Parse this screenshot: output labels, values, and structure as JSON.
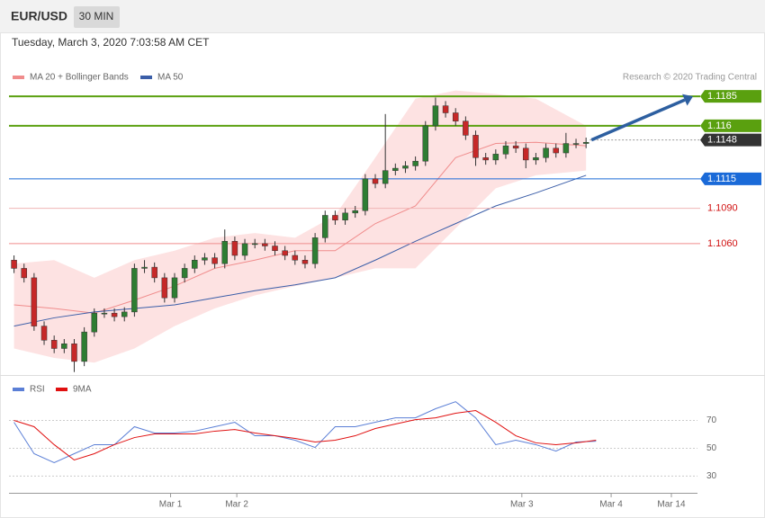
{
  "chart_data": [
    {
      "type": "candlestick",
      "title": "EUR/USD",
      "timeframe": "30 MIN",
      "subtitle": "Tuesday, March 3, 2020 7:03:58 AM CET",
      "credit": "Research © 2020 Trading Central",
      "up_color": "#2e7d32",
      "down_color": "#c62828",
      "xlim": [
        -0.5,
        69
      ],
      "ylim": [
        1.095,
        1.1221
      ],
      "open": [
        1.1046,
        1.1039,
        1.1031,
        1.099,
        1.0978,
        1.0971,
        1.0975,
        1.096,
        1.0985,
        1.1001,
        1.1001,
        1.0998,
        1.1002,
        1.1039,
        1.104,
        1.1031,
        1.1014,
        1.1031,
        1.1039,
        1.1046,
        1.1048,
        1.1043,
        1.1062,
        1.105,
        1.106,
        1.106,
        1.1058,
        1.1054,
        1.105,
        1.1046,
        1.1043,
        1.1065,
        1.1084,
        1.108,
        1.1086,
        1.1088,
        1.1115,
        1.1111,
        1.1122,
        1.1124,
        1.1126,
        1.113,
        1.116,
        1.1177,
        1.1171,
        1.1164,
        1.1152,
        1.1133,
        1.1131,
        1.1136,
        1.1143,
        1.1141,
        1.1131,
        1.1133,
        1.1141,
        1.1137,
        1.1145,
        1.1145
      ],
      "high": [
        1.105,
        1.1043,
        1.1035,
        1.0994,
        1.0982,
        1.0979,
        1.0979,
        1.0989,
        1.1005,
        1.1005,
        1.1005,
        1.1006,
        1.1043,
        1.1046,
        1.1044,
        1.1035,
        1.1035,
        1.1043,
        1.105,
        1.1052,
        1.1052,
        1.1072,
        1.1066,
        1.1064,
        1.1064,
        1.1064,
        1.1062,
        1.1058,
        1.1054,
        1.105,
        1.1069,
        1.1088,
        1.1088,
        1.109,
        1.1092,
        1.1119,
        1.1119,
        1.117,
        1.1128,
        1.113,
        1.1134,
        1.1164,
        1.1184,
        1.1181,
        1.1175,
        1.1168,
        1.1156,
        1.1137,
        1.114,
        1.1147,
        1.1147,
        1.1145,
        1.1137,
        1.1145,
        1.1145,
        1.1154,
        1.1149,
        1.115
      ],
      "low": [
        1.1035,
        1.1027,
        1.0986,
        1.0974,
        1.0967,
        1.0967,
        1.0951,
        1.0956,
        1.0981,
        1.0997,
        1.0994,
        1.0994,
        1.0998,
        1.1035,
        1.1027,
        1.101,
        1.101,
        1.1027,
        1.1035,
        1.1042,
        1.1039,
        1.1039,
        1.1046,
        1.1046,
        1.1056,
        1.1054,
        1.105,
        1.1046,
        1.1042,
        1.1039,
        1.1039,
        1.1061,
        1.1076,
        1.1076,
        1.1082,
        1.1084,
        1.1107,
        1.1107,
        1.1118,
        1.112,
        1.1122,
        1.1126,
        1.1156,
        1.1167,
        1.116,
        1.1148,
        1.1126,
        1.1127,
        1.1127,
        1.1132,
        1.1137,
        1.1124,
        1.1127,
        1.1129,
        1.1133,
        1.1133,
        1.1141,
        1.1141
      ],
      "close": [
        1.1039,
        1.1031,
        1.099,
        1.0978,
        1.0971,
        1.0975,
        1.096,
        1.0985,
        1.1001,
        1.1001,
        1.0998,
        1.1002,
        1.1039,
        1.104,
        1.1031,
        1.1014,
        1.1031,
        1.1039,
        1.1046,
        1.1048,
        1.1043,
        1.1062,
        1.105,
        1.106,
        1.106,
        1.1058,
        1.1054,
        1.105,
        1.1046,
        1.1043,
        1.1065,
        1.1084,
        1.108,
        1.1086,
        1.1088,
        1.1115,
        1.1111,
        1.1122,
        1.1124,
        1.1126,
        1.113,
        1.116,
        1.1177,
        1.1171,
        1.1164,
        1.1152,
        1.1133,
        1.1131,
        1.1136,
        1.1143,
        1.1141,
        1.1131,
        1.1133,
        1.1141,
        1.1137,
        1.1145,
        1.1145,
        1.1146
      ],
      "overlays": [
        {
          "name": "MA 20 + Bollinger Bands",
          "color": "#f08c8c",
          "band_color": "#fde2e2",
          "x": [
            0,
            4,
            8,
            12,
            16,
            20,
            24,
            28,
            32,
            36,
            40,
            44,
            48,
            52,
            57
          ],
          "values": [
            1.1008,
            1.1005,
            1.1001,
            1.1012,
            1.1024,
            1.1039,
            1.1046,
            1.1054,
            1.1054,
            1.1077,
            1.1092,
            1.1133,
            1.1145,
            1.1146,
            1.1143
          ],
          "upper": [
            1.1043,
            1.1046,
            1.1031,
            1.1046,
            1.1054,
            1.1065,
            1.1069,
            1.1065,
            1.1084,
            1.1133,
            1.1183,
            1.119,
            1.1187,
            1.1183,
            1.116
          ],
          "lower": [
            1.0971,
            1.0963,
            1.0959,
            1.0971,
            1.099,
            1.1005,
            1.1016,
            1.1024,
            1.1031,
            1.1039,
            1.1039,
            1.1073,
            1.1107,
            1.1118,
            1.1122
          ]
        },
        {
          "name": "MA 50",
          "color": "#3b5ea8",
          "x": [
            0,
            4,
            8,
            12,
            16,
            20,
            24,
            28,
            32,
            36,
            40,
            44,
            48,
            52,
            57
          ],
          "values": [
            1.099,
            1.0997,
            1.1002,
            1.1005,
            1.1008,
            1.1014,
            1.102,
            1.1025,
            1.1031,
            1.1046,
            1.1062,
            1.1077,
            1.1092,
            1.1103,
            1.1118
          ]
        }
      ],
      "levels": [
        {
          "price": 1.1185,
          "color": "#5aa00f",
          "chip": true
        },
        {
          "price": 1.116,
          "color": "#5aa00f",
          "chip": true
        },
        {
          "price": 1.1148,
          "color": "#333333",
          "chip": true,
          "dotted": true
        },
        {
          "price": 1.1115,
          "color": "#1a6ad8",
          "chip": true
        },
        {
          "price": {
            "value": 1.109,
            "label": "1.1090"
          },
          "color": "#f0b4b4",
          "text_color": "#d01010",
          "chip": false
        },
        {
          "price": {
            "value": 1.106,
            "label": "1.1060"
          },
          "color": "#f08c8c",
          "text_color": "#d01010",
          "chip": false
        }
      ],
      "arrow_color": "#2d5fa0"
    },
    {
      "type": "line",
      "xlim": [
        -0.5,
        69
      ],
      "ylim": [
        18,
        102
      ],
      "yticks": [
        30,
        50,
        70
      ],
      "xticks": [
        {
          "value": 15.6,
          "label": "Mar 1"
        },
        {
          "value": 22.2,
          "label": "Mar 2"
        },
        {
          "value": 50.6,
          "label": "Mar 3"
        },
        {
          "value": 59.5,
          "label": "Mar 4"
        },
        {
          "value": 65.5,
          "label": "Mar 14"
        }
      ],
      "series": [
        {
          "name": "RSI",
          "color": "#5b7fd6",
          "x": [
            0,
            2,
            4,
            6,
            8,
            10,
            12,
            14,
            16,
            18,
            20,
            22,
            24,
            26,
            28,
            30,
            32,
            34,
            36,
            38,
            40,
            42,
            44,
            46,
            48,
            50,
            52,
            54,
            56,
            58
          ],
          "values": [
            68.7,
            46.1,
            39.7,
            46.1,
            52.6,
            52.6,
            65.5,
            61.0,
            61.0,
            62.3,
            65.5,
            68.7,
            59.0,
            59.0,
            55.8,
            50.6,
            65.5,
            65.5,
            68.7,
            71.9,
            71.9,
            78.4,
            83.5,
            71.9,
            52.6,
            55.8,
            52.6,
            48.0,
            54.5,
            55.1
          ]
        },
        {
          "name": "9MA",
          "color": "#e01010",
          "x": [
            0,
            2,
            4,
            6,
            8,
            10,
            12,
            14,
            16,
            18,
            20,
            22,
            24,
            26,
            28,
            30,
            32,
            34,
            36,
            38,
            40,
            42,
            44,
            46,
            48,
            50,
            52,
            54,
            56,
            58
          ],
          "values": [
            70.0,
            65.5,
            52.6,
            41.6,
            46.1,
            52.6,
            57.7,
            60.3,
            60.3,
            60.3,
            62.3,
            63.5,
            61.0,
            59.0,
            57.1,
            54.5,
            55.8,
            59.0,
            64.2,
            67.4,
            70.6,
            71.9,
            75.2,
            77.1,
            68.7,
            59.0,
            53.9,
            52.6,
            53.9,
            55.8
          ]
        }
      ]
    }
  ]
}
